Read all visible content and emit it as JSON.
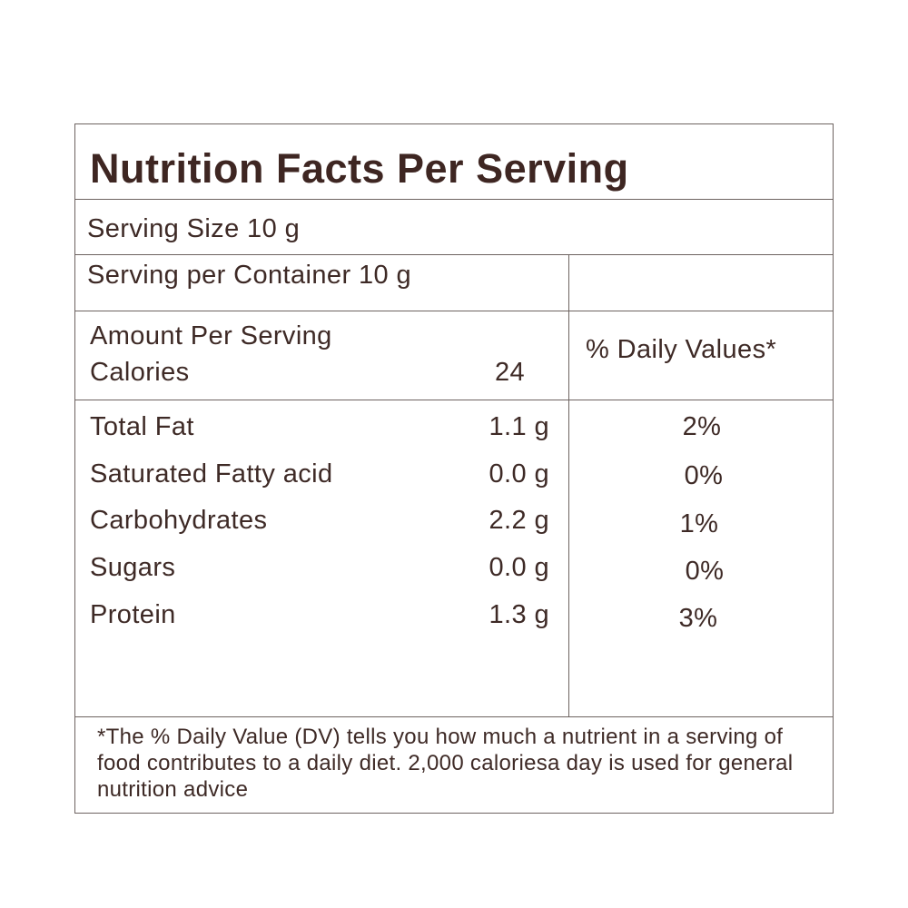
{
  "title": "Nutrition Facts Per Serving",
  "serving_size": "Serving Size 10 g",
  "serving_per_container": "Serving per Container 10 g",
  "amount_per_serving": "Amount Per Serving",
  "calories_label": "Calories",
  "calories_value": "24",
  "daily_values_header": "% Daily Values*",
  "nutrients": [
    {
      "name": "Total Fat",
      "amount": "1.1 g",
      "dv": "2%"
    },
    {
      "name": "Saturated Fatty acid",
      "amount": "0.0 g",
      "dv": "0%"
    },
    {
      "name": "Carbohydrates",
      "amount": "2.2 g",
      "dv": "1%"
    },
    {
      "name": "Sugars",
      "amount": "0.0 g",
      "dv": "0%"
    },
    {
      "name": "Protein",
      "amount": "1.3 g",
      "dv": "3%"
    }
  ],
  "footnote": "*The % Daily Value (DV) tells you how much a nutrient in a serving of food contributes to a daily diet. 2,000 caloriesa day is used for general nutrition advice",
  "colors": {
    "text": "#3e2a26",
    "border": "#6d6360",
    "background": "#ffffff"
  }
}
